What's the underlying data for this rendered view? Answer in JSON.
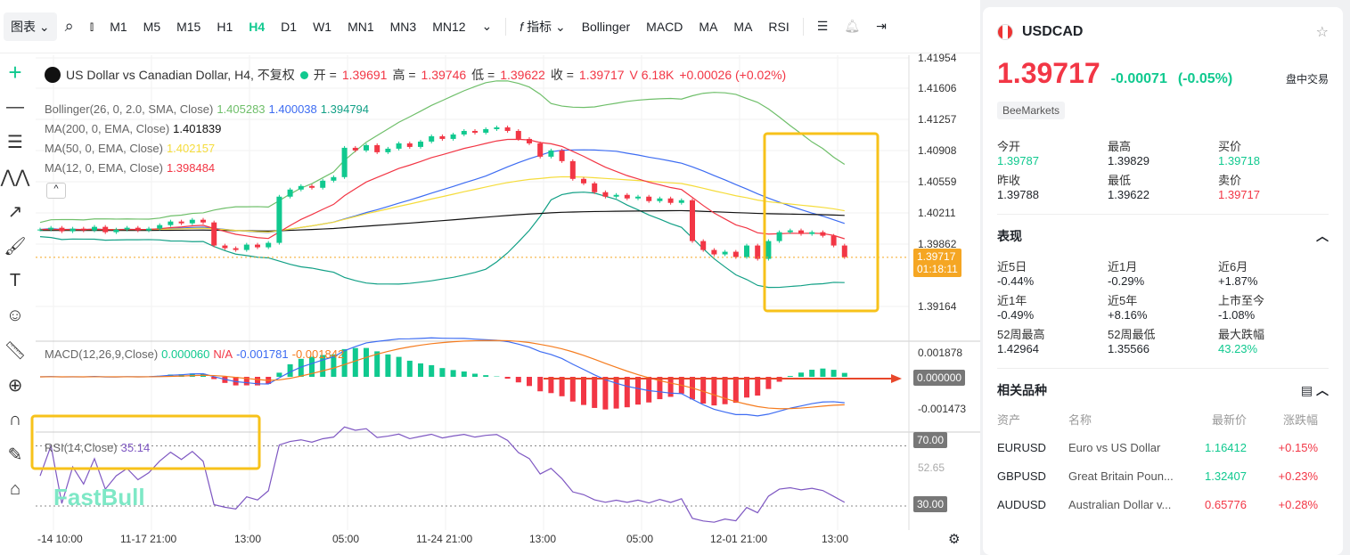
{
  "toolbar": {
    "chart_type": "图表",
    "timeframes": [
      "M1",
      "M5",
      "M15",
      "H1",
      "H4",
      "D1",
      "W1",
      "MN1",
      "MN3",
      "MN12"
    ],
    "active_timeframe": "H4",
    "indicators_label": "指标",
    "indicators": [
      "Bollinger",
      "MACD",
      "MA",
      "MA",
      "RSI"
    ]
  },
  "chart": {
    "title": "US Dollar vs Canadian Dollar, H4, 不复权",
    "ohlc": {
      "open_label": "开 =",
      "open": "1.39691",
      "high_label": "高 =",
      "high": "1.39746",
      "low_label": "低 =",
      "low": "1.39622",
      "close_label": "收 =",
      "close": "1.39717",
      "volume": "V 6.18K",
      "change": "+0.00026 (+0.02%)"
    },
    "legends": {
      "bollinger": {
        "label": "Bollinger(26, 0, 2.0, SMA, Close)",
        "upper": "1.405283",
        "mid": "1.400038",
        "lower": "1.394794"
      },
      "ma200": {
        "label": "MA(200, 0, EMA, Close)",
        "value": "1.401839"
      },
      "ma50": {
        "label": "MA(50, 0, EMA, Close)",
        "value": "1.402157"
      },
      "ma12": {
        "label": "MA(12, 0, EMA, Close)",
        "value": "1.398484"
      },
      "macd": {
        "label": "MACD(12,26,9,Close)",
        "v1": "0.000060",
        "v2": "N/A",
        "v3": "-0.001781",
        "v4": "-0.001842"
      },
      "rsi": {
        "label": "RSI(14,Close)",
        "value": "35.14"
      }
    },
    "price_axis": [
      "1.41954",
      "1.41606",
      "1.41257",
      "1.40908",
      "1.40559",
      "1.40211",
      "1.39862",
      "1.39164"
    ],
    "price_tag": "1.39717",
    "countdown": "01:18:11",
    "macd_axis": [
      "0.001878",
      "0.000000",
      "-0.001473"
    ],
    "rsi_axis": [
      "70.00",
      "52.65",
      "30.00"
    ],
    "time_axis": [
      "-14 10:00",
      "11-17 21:00",
      "13:00",
      "05:00",
      "11-24 21:00",
      "13:00",
      "05:00",
      "12-01 21:00",
      "13:00"
    ],
    "watermark": "FastBull",
    "colors": {
      "up": "#10c98f",
      "down": "#f23645",
      "bb_upper": "#6fbf6a",
      "bb_mid": "#3d6cf2",
      "bb_lower": "#12a086",
      "ma200": "#111111",
      "ma50": "#f5dc3b",
      "ma12": "#f23645",
      "highlight": "#f7c21a"
    },
    "closes": [
      1.4003,
      1.4005,
      1.4001,
      1.4004,
      1.4002,
      1.4006,
      1.4,
      1.4003,
      1.4005,
      1.4002,
      1.4004,
      1.4008,
      1.4012,
      1.401,
      1.4014,
      1.4011,
      1.3985,
      1.3982,
      1.398,
      1.3986,
      1.3983,
      1.3988,
      1.404,
      1.4048,
      1.4052,
      1.405,
      1.4058,
      1.4062,
      1.4095,
      1.4092,
      1.4098,
      1.409,
      1.4094,
      1.41,
      1.4096,
      1.4102,
      1.4108,
      1.4105,
      1.411,
      1.4114,
      1.4112,
      1.4116,
      1.4118,
      1.4114,
      1.4105,
      1.41,
      1.4085,
      1.4092,
      1.408,
      1.406,
      1.4055,
      1.4045,
      1.404,
      1.4042,
      1.4038,
      1.404,
      1.4035,
      1.4038,
      1.4033,
      1.4036,
      1.399,
      1.398,
      1.3975,
      1.3978,
      1.3972,
      1.3985,
      1.397,
      1.399,
      1.4,
      1.4002,
      1.3998,
      1.4,
      1.3996,
      1.3985,
      1.3972
    ]
  },
  "panel": {
    "symbol": "USDCAD",
    "price": "1.39717",
    "change": "-0.00071",
    "change_pct": "(-0.05%)",
    "session": "盘中交易",
    "broker": "BeeMarkets",
    "stats": [
      {
        "label": "今开",
        "value": "1.39787",
        "color": "green"
      },
      {
        "label": "最高",
        "value": "1.39829",
        "color": ""
      },
      {
        "label": "买价",
        "value": "1.39718",
        "color": "green"
      },
      {
        "label": "昨收",
        "value": "1.39788",
        "color": ""
      },
      {
        "label": "最低",
        "value": "1.39622",
        "color": ""
      },
      {
        "label": "卖价",
        "value": "1.39717",
        "color": "red"
      }
    ],
    "performance_title": "表现",
    "performance": [
      {
        "label": "近5日",
        "value": "-0.44%"
      },
      {
        "label": "近1月",
        "value": "-0.29%"
      },
      {
        "label": "近6月",
        "value": "+1.87%"
      },
      {
        "label": "近1年",
        "value": "-0.49%"
      },
      {
        "label": "近5年",
        "value": "+8.16%"
      },
      {
        "label": "上市至今",
        "value": "-1.08%"
      },
      {
        "label": "52周最高",
        "value": "1.42964"
      },
      {
        "label": "52周最低",
        "value": "1.35566"
      },
      {
        "label": "最大跌幅",
        "value": "43.23%"
      }
    ],
    "related_title": "相关品种",
    "related_headers": [
      "资产",
      "名称",
      "最新价",
      "涨跌幅"
    ],
    "related": [
      {
        "asset": "EURUSD",
        "name": "Euro vs US Dollar",
        "price": "1.16412",
        "pc": "green",
        "change": "+0.15%"
      },
      {
        "asset": "GBPUSD",
        "name": "Great Britain Poun...",
        "price": "1.32407",
        "pc": "green",
        "change": "+0.23%"
      },
      {
        "asset": "AUDUSD",
        "name": "Australian Dollar v...",
        "price": "0.65776",
        "pc": "red",
        "change": "+0.28%"
      }
    ]
  }
}
